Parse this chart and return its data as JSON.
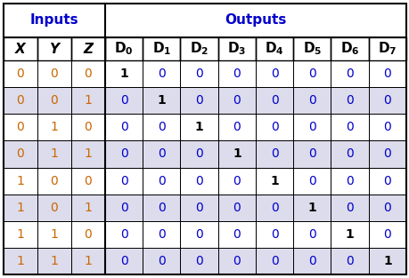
{
  "title_inputs": "Inputs",
  "title_outputs": "Outputs",
  "col_labels_input": [
    "X",
    "Y",
    "Z"
  ],
  "col_labels_output": [
    "D",
    "D",
    "D",
    "D",
    "D",
    "D",
    "D",
    "D"
  ],
  "col_subs_output": [
    "0",
    "1",
    "2",
    "3",
    "4",
    "5",
    "6",
    "7"
  ],
  "rows": [
    [
      0,
      0,
      0,
      1,
      0,
      0,
      0,
      0,
      0,
      0,
      0
    ],
    [
      0,
      0,
      1,
      0,
      1,
      0,
      0,
      0,
      0,
      0,
      0
    ],
    [
      0,
      1,
      0,
      0,
      0,
      1,
      0,
      0,
      0,
      0,
      0
    ],
    [
      0,
      1,
      1,
      0,
      0,
      0,
      1,
      0,
      0,
      0,
      0
    ],
    [
      1,
      0,
      0,
      0,
      0,
      0,
      0,
      1,
      0,
      0,
      0
    ],
    [
      1,
      0,
      1,
      0,
      0,
      0,
      0,
      0,
      1,
      0,
      0
    ],
    [
      1,
      1,
      0,
      0,
      0,
      0,
      0,
      0,
      0,
      1,
      0
    ],
    [
      1,
      1,
      1,
      0,
      0,
      0,
      0,
      0,
      0,
      0,
      1
    ]
  ],
  "input_cols": 3,
  "output_cols": 8,
  "bg_color": "#ffffff",
  "border_color": "#000000",
  "row_bg_even": "#ffffff",
  "row_bg_odd": "#dcdcec",
  "input_color": "#cc6600",
  "output_color": "#0000cc",
  "one_color": "#000000",
  "group_header_color": "#0000cc",
  "col_header_color": "#000000",
  "group_header_fontsize": 11,
  "col_header_fontsize": 11,
  "cell_fontsize": 10,
  "fig_width": 4.6,
  "fig_height": 3.13,
  "dpi": 100
}
